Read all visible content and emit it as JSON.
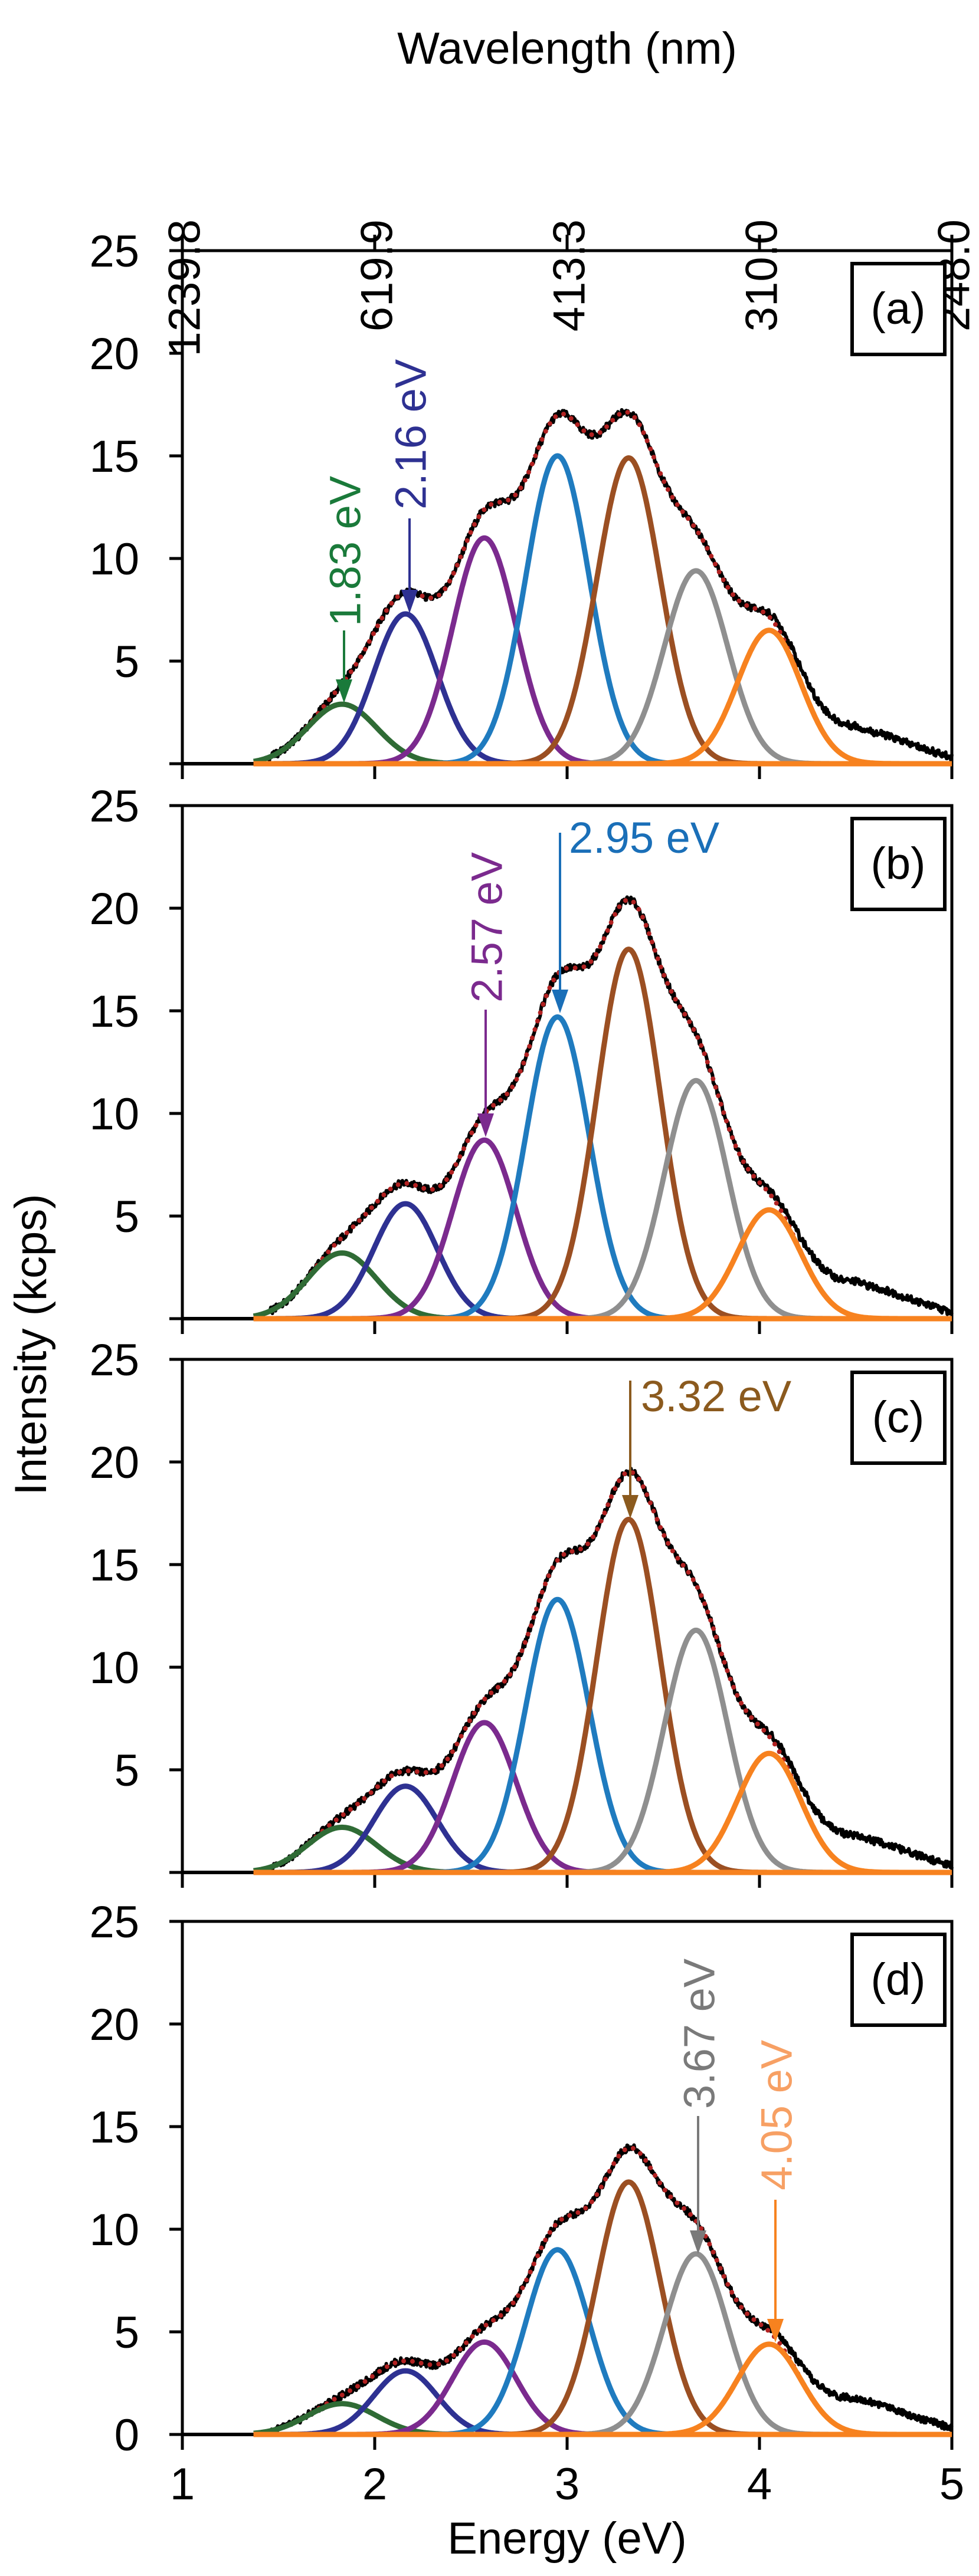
{
  "chart_data": {
    "type": "line",
    "x_axis": {
      "label": "Energy (eV)",
      "range": [
        1,
        5
      ],
      "ticks": [
        "1",
        "2",
        "3",
        "4",
        "5"
      ]
    },
    "top_axis": {
      "label": "Wavelength (nm)",
      "ticks": [
        "1239.8",
        "619.9",
        "413.3",
        "310.0",
        "248.0"
      ],
      "tick_energies": [
        1,
        2,
        3,
        4,
        5
      ]
    },
    "y_axis": {
      "label": "Intensity (kcps)",
      "range": [
        0,
        25
      ],
      "ticks": [
        "0",
        "5",
        "10",
        "15",
        "20",
        "25"
      ]
    },
    "component_centers_eV": [
      1.83,
      2.16,
      2.57,
      2.95,
      3.32,
      3.67,
      4.05
    ],
    "component_sigma_eV": [
      0.18,
      0.165,
      0.165,
      0.165,
      0.165,
      0.165,
      0.165
    ],
    "component_colors": [
      "#2f6b35",
      "#2e3192",
      "#7b2a8e",
      "#1f7bbf",
      "#9b4f22",
      "#8f8f8f",
      "#f7821f"
    ],
    "measured_color": "#000000",
    "fit_color": "#b22222",
    "high_energy_tail": [
      [
        4.0,
        0
      ],
      [
        4.2,
        0.6
      ],
      [
        4.35,
        1.3
      ],
      [
        4.5,
        1.7
      ],
      [
        4.65,
        1.4
      ],
      [
        4.8,
        0.9
      ],
      [
        5.0,
        0.3
      ]
    ],
    "panels": [
      {
        "label": "(a)",
        "amplitudes": [
          2.9,
          7.3,
          11.0,
          15.0,
          14.9,
          9.4,
          6.5
        ],
        "annotations": [
          {
            "text": "1.83 eV",
            "component": 0,
            "color": "#1a7a3a"
          },
          {
            "text": "2.16 eV",
            "component": 1,
            "color": "#2e3192"
          }
        ]
      },
      {
        "label": "(b)",
        "amplitudes": [
          3.2,
          5.6,
          8.7,
          14.7,
          18.0,
          11.6,
          5.3
        ],
        "annotations": [
          {
            "text": "2.57 eV",
            "component": 2,
            "color": "#7b2a8e"
          },
          {
            "text": "2.95 eV",
            "component": 3,
            "color": "#1a6fb8"
          }
        ]
      },
      {
        "label": "(c)",
        "amplitudes": [
          2.2,
          4.2,
          7.3,
          13.3,
          17.2,
          11.8,
          5.8
        ],
        "annotations": [
          {
            "text": "3.32 eV",
            "component": 4,
            "color": "#8b5a1e"
          }
        ]
      },
      {
        "label": "(d)",
        "amplitudes": [
          1.5,
          3.1,
          4.5,
          9.0,
          12.3,
          8.8,
          4.4
        ],
        "annotations": [
          {
            "text": "3.67 eV",
            "component": 5,
            "color": "#7a7a7a"
          },
          {
            "text": "4.05 eV",
            "component": 6,
            "color": "#f7a064"
          }
        ]
      }
    ]
  }
}
